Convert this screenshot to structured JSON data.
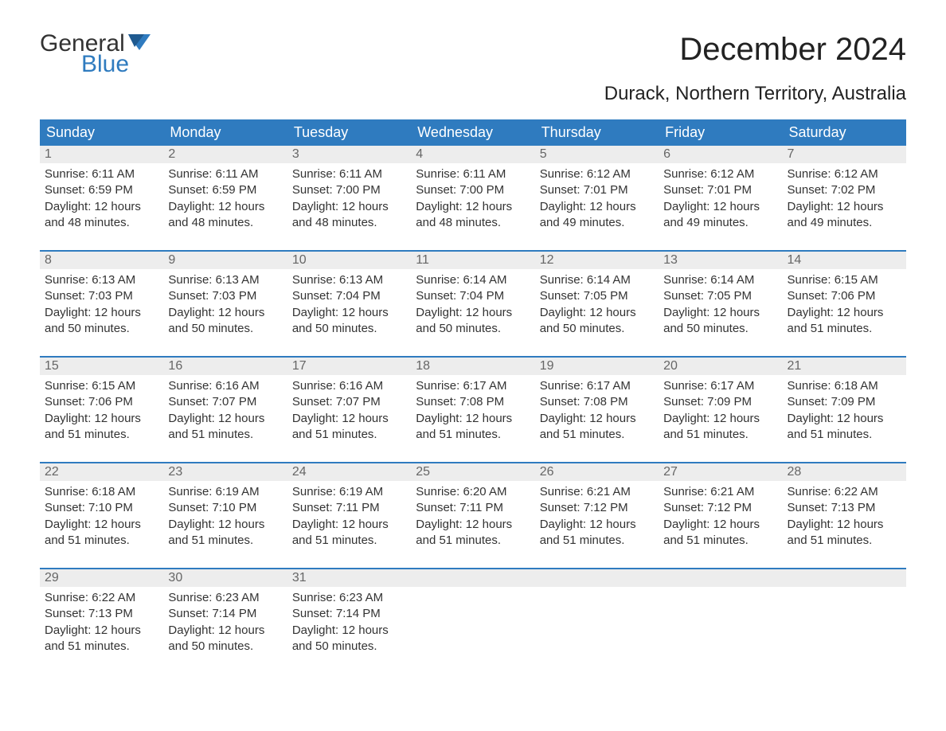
{
  "logo": {
    "text1": "General",
    "text2": "Blue"
  },
  "title": "December 2024",
  "location": "Durack, Northern Territory, Australia",
  "colors": {
    "header_bg": "#2f7bbf",
    "header_text": "#ffffff",
    "daynum_bg": "#ededed",
    "daynum_text": "#666666",
    "week_border": "#2f7bbf",
    "body_text": "#333333",
    "page_bg": "#ffffff",
    "logo_accent": "#2f7bbf"
  },
  "typography": {
    "title_fontsize": 40,
    "location_fontsize": 24,
    "dayheader_fontsize": 18,
    "cell_fontsize": 15
  },
  "day_headers": [
    "Sunday",
    "Monday",
    "Tuesday",
    "Wednesday",
    "Thursday",
    "Friday",
    "Saturday"
  ],
  "weeks": [
    [
      {
        "num": "1",
        "sunrise": "Sunrise: 6:11 AM",
        "sunset": "Sunset: 6:59 PM",
        "daylight1": "Daylight: 12 hours",
        "daylight2": "and 48 minutes."
      },
      {
        "num": "2",
        "sunrise": "Sunrise: 6:11 AM",
        "sunset": "Sunset: 6:59 PM",
        "daylight1": "Daylight: 12 hours",
        "daylight2": "and 48 minutes."
      },
      {
        "num": "3",
        "sunrise": "Sunrise: 6:11 AM",
        "sunset": "Sunset: 7:00 PM",
        "daylight1": "Daylight: 12 hours",
        "daylight2": "and 48 minutes."
      },
      {
        "num": "4",
        "sunrise": "Sunrise: 6:11 AM",
        "sunset": "Sunset: 7:00 PM",
        "daylight1": "Daylight: 12 hours",
        "daylight2": "and 48 minutes."
      },
      {
        "num": "5",
        "sunrise": "Sunrise: 6:12 AM",
        "sunset": "Sunset: 7:01 PM",
        "daylight1": "Daylight: 12 hours",
        "daylight2": "and 49 minutes."
      },
      {
        "num": "6",
        "sunrise": "Sunrise: 6:12 AM",
        "sunset": "Sunset: 7:01 PM",
        "daylight1": "Daylight: 12 hours",
        "daylight2": "and 49 minutes."
      },
      {
        "num": "7",
        "sunrise": "Sunrise: 6:12 AM",
        "sunset": "Sunset: 7:02 PM",
        "daylight1": "Daylight: 12 hours",
        "daylight2": "and 49 minutes."
      }
    ],
    [
      {
        "num": "8",
        "sunrise": "Sunrise: 6:13 AM",
        "sunset": "Sunset: 7:03 PM",
        "daylight1": "Daylight: 12 hours",
        "daylight2": "and 50 minutes."
      },
      {
        "num": "9",
        "sunrise": "Sunrise: 6:13 AM",
        "sunset": "Sunset: 7:03 PM",
        "daylight1": "Daylight: 12 hours",
        "daylight2": "and 50 minutes."
      },
      {
        "num": "10",
        "sunrise": "Sunrise: 6:13 AM",
        "sunset": "Sunset: 7:04 PM",
        "daylight1": "Daylight: 12 hours",
        "daylight2": "and 50 minutes."
      },
      {
        "num": "11",
        "sunrise": "Sunrise: 6:14 AM",
        "sunset": "Sunset: 7:04 PM",
        "daylight1": "Daylight: 12 hours",
        "daylight2": "and 50 minutes."
      },
      {
        "num": "12",
        "sunrise": "Sunrise: 6:14 AM",
        "sunset": "Sunset: 7:05 PM",
        "daylight1": "Daylight: 12 hours",
        "daylight2": "and 50 minutes."
      },
      {
        "num": "13",
        "sunrise": "Sunrise: 6:14 AM",
        "sunset": "Sunset: 7:05 PM",
        "daylight1": "Daylight: 12 hours",
        "daylight2": "and 50 minutes."
      },
      {
        "num": "14",
        "sunrise": "Sunrise: 6:15 AM",
        "sunset": "Sunset: 7:06 PM",
        "daylight1": "Daylight: 12 hours",
        "daylight2": "and 51 minutes."
      }
    ],
    [
      {
        "num": "15",
        "sunrise": "Sunrise: 6:15 AM",
        "sunset": "Sunset: 7:06 PM",
        "daylight1": "Daylight: 12 hours",
        "daylight2": "and 51 minutes."
      },
      {
        "num": "16",
        "sunrise": "Sunrise: 6:16 AM",
        "sunset": "Sunset: 7:07 PM",
        "daylight1": "Daylight: 12 hours",
        "daylight2": "and 51 minutes."
      },
      {
        "num": "17",
        "sunrise": "Sunrise: 6:16 AM",
        "sunset": "Sunset: 7:07 PM",
        "daylight1": "Daylight: 12 hours",
        "daylight2": "and 51 minutes."
      },
      {
        "num": "18",
        "sunrise": "Sunrise: 6:17 AM",
        "sunset": "Sunset: 7:08 PM",
        "daylight1": "Daylight: 12 hours",
        "daylight2": "and 51 minutes."
      },
      {
        "num": "19",
        "sunrise": "Sunrise: 6:17 AM",
        "sunset": "Sunset: 7:08 PM",
        "daylight1": "Daylight: 12 hours",
        "daylight2": "and 51 minutes."
      },
      {
        "num": "20",
        "sunrise": "Sunrise: 6:17 AM",
        "sunset": "Sunset: 7:09 PM",
        "daylight1": "Daylight: 12 hours",
        "daylight2": "and 51 minutes."
      },
      {
        "num": "21",
        "sunrise": "Sunrise: 6:18 AM",
        "sunset": "Sunset: 7:09 PM",
        "daylight1": "Daylight: 12 hours",
        "daylight2": "and 51 minutes."
      }
    ],
    [
      {
        "num": "22",
        "sunrise": "Sunrise: 6:18 AM",
        "sunset": "Sunset: 7:10 PM",
        "daylight1": "Daylight: 12 hours",
        "daylight2": "and 51 minutes."
      },
      {
        "num": "23",
        "sunrise": "Sunrise: 6:19 AM",
        "sunset": "Sunset: 7:10 PM",
        "daylight1": "Daylight: 12 hours",
        "daylight2": "and 51 minutes."
      },
      {
        "num": "24",
        "sunrise": "Sunrise: 6:19 AM",
        "sunset": "Sunset: 7:11 PM",
        "daylight1": "Daylight: 12 hours",
        "daylight2": "and 51 minutes."
      },
      {
        "num": "25",
        "sunrise": "Sunrise: 6:20 AM",
        "sunset": "Sunset: 7:11 PM",
        "daylight1": "Daylight: 12 hours",
        "daylight2": "and 51 minutes."
      },
      {
        "num": "26",
        "sunrise": "Sunrise: 6:21 AM",
        "sunset": "Sunset: 7:12 PM",
        "daylight1": "Daylight: 12 hours",
        "daylight2": "and 51 minutes."
      },
      {
        "num": "27",
        "sunrise": "Sunrise: 6:21 AM",
        "sunset": "Sunset: 7:12 PM",
        "daylight1": "Daylight: 12 hours",
        "daylight2": "and 51 minutes."
      },
      {
        "num": "28",
        "sunrise": "Sunrise: 6:22 AM",
        "sunset": "Sunset: 7:13 PM",
        "daylight1": "Daylight: 12 hours",
        "daylight2": "and 51 minutes."
      }
    ],
    [
      {
        "num": "29",
        "sunrise": "Sunrise: 6:22 AM",
        "sunset": "Sunset: 7:13 PM",
        "daylight1": "Daylight: 12 hours",
        "daylight2": "and 51 minutes."
      },
      {
        "num": "30",
        "sunrise": "Sunrise: 6:23 AM",
        "sunset": "Sunset: 7:14 PM",
        "daylight1": "Daylight: 12 hours",
        "daylight2": "and 50 minutes."
      },
      {
        "num": "31",
        "sunrise": "Sunrise: 6:23 AM",
        "sunset": "Sunset: 7:14 PM",
        "daylight1": "Daylight: 12 hours",
        "daylight2": "and 50 minutes."
      },
      {
        "num": "",
        "sunrise": "",
        "sunset": "",
        "daylight1": "",
        "daylight2": ""
      },
      {
        "num": "",
        "sunrise": "",
        "sunset": "",
        "daylight1": "",
        "daylight2": ""
      },
      {
        "num": "",
        "sunrise": "",
        "sunset": "",
        "daylight1": "",
        "daylight2": ""
      },
      {
        "num": "",
        "sunrise": "",
        "sunset": "",
        "daylight1": "",
        "daylight2": ""
      }
    ]
  ]
}
